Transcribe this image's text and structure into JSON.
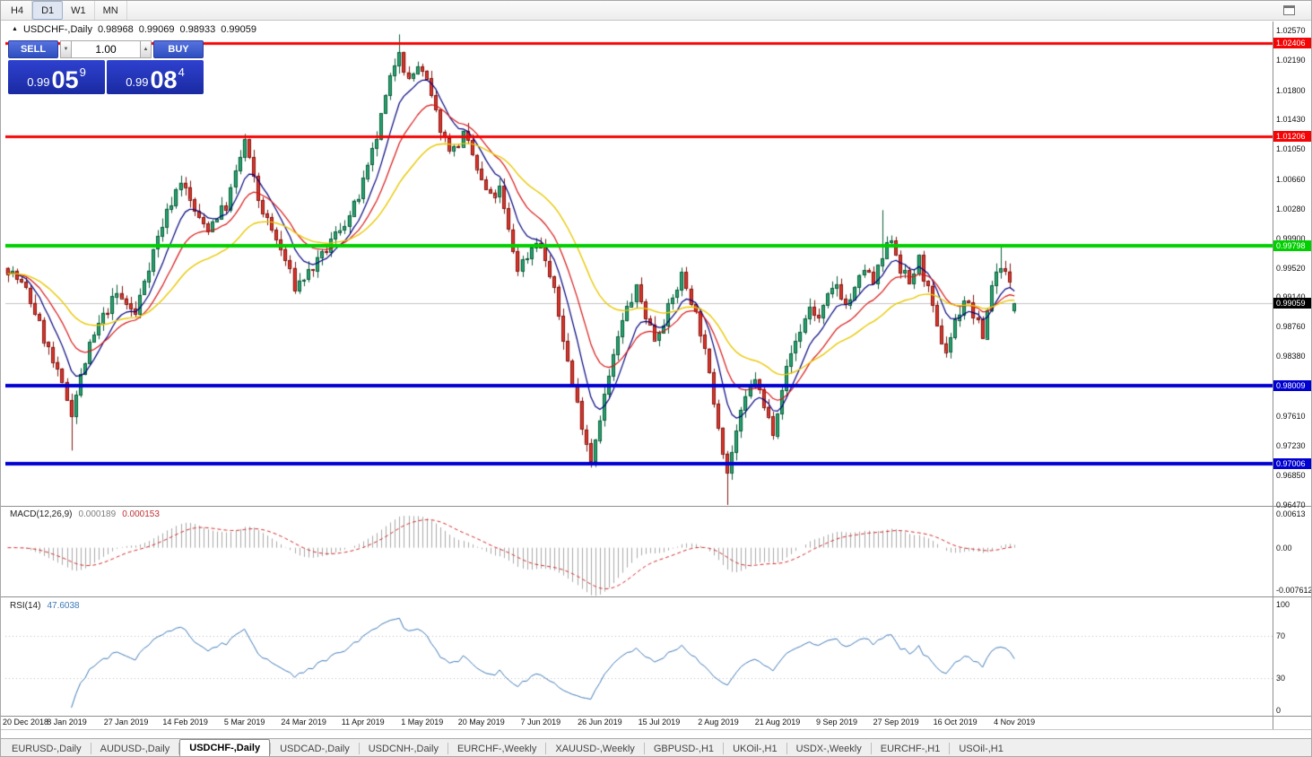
{
  "toolbar": {
    "timeframes": [
      "H4",
      "D1",
      "W1",
      "MN"
    ],
    "active_timeframe": "D1"
  },
  "icons": {
    "spin_up": "▲",
    "spin_down": "▼",
    "symbol_arrow": "▲"
  },
  "chart": {
    "ohlc_line": {
      "symbol": "USDCHF-,Daily",
      "open": "0.98968",
      "high": "0.99069",
      "low": "0.98933",
      "close": "0.99059"
    },
    "trade_panel": {
      "sell_label": "SELL",
      "buy_label": "BUY",
      "volume": "1.00",
      "sell_price": {
        "prefix": "0.99",
        "big": "05",
        "sup": "9"
      },
      "buy_price": {
        "prefix": "0.99",
        "big": "08",
        "sup": "4"
      }
    },
    "price_range": {
      "top": 1.0257,
      "bottom": 0.9647
    },
    "y_axis": [
      "1.02570",
      "1.02190",
      "1.01800",
      "1.01430",
      "1.01050",
      "1.00660",
      "1.00280",
      "0.99900",
      "0.99520",
      "0.99140",
      "0.98760",
      "0.98380",
      "0.97990",
      "0.97610",
      "0.97230",
      "0.96850",
      "0.96470"
    ],
    "x_axis": [
      "20 Dec 2018",
      "8 Jan 2019",
      "27 Jan 2019",
      "14 Feb 2019",
      "5 Mar 2019",
      "24 Mar 2019",
      "11 Apr 2019",
      "1 May 2019",
      "20 May 2019",
      "7 Jun 2019",
      "26 Jun 2019",
      "15 Jul 2019",
      "2 Aug 2019",
      "21 Aug 2019",
      "9 Sep 2019",
      "27 Sep 2019",
      "16 Oct 2019",
      "4 Nov 2019"
    ],
    "levels": [
      {
        "price": 1.02406,
        "label": "1.02406",
        "color": "#f40404",
        "width": 3
      },
      {
        "price": 1.01206,
        "label": "1.01206",
        "color": "#f40404",
        "width": 3
      },
      {
        "price": 0.99798,
        "label": "0.99798",
        "color": "#00d000",
        "width": 4
      },
      {
        "price": 0.98009,
        "label": "0.98009",
        "color": "#0000d0",
        "width": 4
      },
      {
        "price": 0.97006,
        "label": "0.97006",
        "color": "#0000d0",
        "width": 4
      }
    ],
    "current_price": {
      "value": 0.99059,
      "label": "0.99059",
      "tag_color": "#000000"
    }
  },
  "chart_data": {
    "type": "candlestick",
    "symbol": "USDCHF",
    "timeframe": "Daily",
    "bars": 222,
    "label_every_bars": 13,
    "anchors": [
      [
        0,
        0.9952
      ],
      [
        2,
        0.9938
      ],
      [
        4,
        0.9922
      ],
      [
        6,
        0.9896
      ],
      [
        8,
        0.9862
      ],
      [
        10,
        0.983
      ],
      [
        12,
        0.98
      ],
      [
        14,
        0.9768
      ],
      [
        16,
        0.9812
      ],
      [
        18,
        0.985
      ],
      [
        20,
        0.9878
      ],
      [
        22,
        0.99
      ],
      [
        24,
        0.9918
      ],
      [
        26,
        0.9906
      ],
      [
        28,
        0.9892
      ],
      [
        30,
        0.9938
      ],
      [
        32,
        0.9974
      ],
      [
        34,
        1.0008
      ],
      [
        36,
        1.0038
      ],
      [
        38,
        1.0066
      ],
      [
        40,
        1.0038
      ],
      [
        42,
        1.0012
      ],
      [
        44,
        1.0004
      ],
      [
        46,
        1.002
      ],
      [
        48,
        1.0032
      ],
      [
        50,
        1.0072
      ],
      [
        52,
        1.0116
      ],
      [
        53,
        1.009
      ],
      [
        55,
        1.004
      ],
      [
        57,
        1.0012
      ],
      [
        59,
        0.9988
      ],
      [
        61,
        0.9962
      ],
      [
        63,
        0.9928
      ],
      [
        65,
        0.994
      ],
      [
        67,
        0.9952
      ],
      [
        69,
        0.9966
      ],
      [
        71,
        0.9986
      ],
      [
        73,
        1.0004
      ],
      [
        75,
        1.0018
      ],
      [
        77,
        1.0044
      ],
      [
        79,
        1.0078
      ],
      [
        81,
        1.012
      ],
      [
        83,
        1.017
      ],
      [
        85,
        1.0216
      ],
      [
        86,
        1.0236
      ],
      [
        87,
        1.021
      ],
      [
        88,
        1.0192
      ],
      [
        90,
        1.0212
      ],
      [
        92,
        1.019
      ],
      [
        94,
        1.015
      ],
      [
        96,
        1.0116
      ],
      [
        98,
        1.0104
      ],
      [
        100,
        1.0122
      ],
      [
        102,
        1.0096
      ],
      [
        104,
        1.0062
      ],
      [
        106,
        1.0042
      ],
      [
        108,
        1.0052
      ],
      [
        110,
        0.9998
      ],
      [
        112,
        0.9952
      ],
      [
        114,
        0.9968
      ],
      [
        116,
        0.999
      ],
      [
        118,
        0.9962
      ],
      [
        120,
        0.992
      ],
      [
        122,
        0.9862
      ],
      [
        124,
        0.9802
      ],
      [
        126,
        0.9752
      ],
      [
        128,
        0.9706
      ],
      [
        130,
        0.9762
      ],
      [
        132,
        0.9812
      ],
      [
        134,
        0.9862
      ],
      [
        136,
        0.99
      ],
      [
        138,
        0.9924
      ],
      [
        140,
        0.9892
      ],
      [
        142,
        0.9862
      ],
      [
        144,
        0.9886
      ],
      [
        146,
        0.9912
      ],
      [
        148,
        0.9942
      ],
      [
        150,
        0.9912
      ],
      [
        152,
        0.9872
      ],
      [
        154,
        0.9812
      ],
      [
        156,
        0.9752
      ],
      [
        158,
        0.969
      ],
      [
        160,
        0.9742
      ],
      [
        162,
        0.9782
      ],
      [
        164,
        0.9812
      ],
      [
        166,
        0.9772
      ],
      [
        168,
        0.9744
      ],
      [
        170,
        0.98
      ],
      [
        172,
        0.9842
      ],
      [
        174,
        0.9872
      ],
      [
        176,
        0.9902
      ],
      [
        178,
        0.9886
      ],
      [
        180,
        0.9912
      ],
      [
        182,
        0.9932
      ],
      [
        184,
        0.9904
      ],
      [
        186,
        0.9922
      ],
      [
        188,
        0.9952
      ],
      [
        190,
        0.9932
      ],
      [
        192,
        0.9964
      ],
      [
        194,
        0.9992
      ],
      [
        196,
        0.9952
      ],
      [
        198,
        0.9932
      ],
      [
        200,
        0.9962
      ],
      [
        202,
        0.9922
      ],
      [
        204,
        0.9872
      ],
      [
        206,
        0.9846
      ],
      [
        208,
        0.9882
      ],
      [
        210,
        0.9912
      ],
      [
        212,
        0.9892
      ],
      [
        214,
        0.9864
      ],
      [
        216,
        0.9932
      ],
      [
        218,
        0.9958
      ],
      [
        220,
        0.993
      ],
      [
        221,
        0.9906
      ]
    ],
    "wick_overrides": [
      {
        "bar": 14,
        "low": 0.9717
      },
      {
        "bar": 52,
        "high": 1.0124
      },
      {
        "bar": 86,
        "high": 1.0252
      },
      {
        "bar": 158,
        "low": 0.9647
      },
      {
        "bar": 192,
        "high": 1.0026
      },
      {
        "bar": 218,
        "high": 0.9978
      }
    ],
    "last_ohlc": [
      0.98968,
      0.99069,
      0.98933,
      0.99059
    ],
    "colors": {
      "up": "#26a570",
      "up_border": "#0d5c3b",
      "down": "#e0352b",
      "down_border": "#7e1710"
    },
    "ma": [
      {
        "period": 8,
        "color": "#00007f",
        "width": 1.2
      },
      {
        "period": 16,
        "color": "#d81616",
        "width": 1.2
      },
      {
        "period": 34,
        "color": "#e8c800",
        "width": 1.4
      }
    ]
  },
  "macd": {
    "title": "MACD(12,26,9)",
    "value_main": "0.000189",
    "value_signal": "0.000153",
    "axis": [
      "0.00613",
      "0.00",
      "-0.007612"
    ],
    "range": {
      "max": 0.0064,
      "min": -0.0078
    },
    "fast": 12,
    "slow": 26,
    "signal": 9,
    "histogram_color": "#a9a9a9",
    "signal_color": "#d22a2a"
  },
  "rsi": {
    "title": "RSI(14)",
    "value": "47.6038",
    "axis": [
      "100",
      "70",
      "30",
      "0"
    ],
    "period": 14,
    "levels": [
      70,
      30
    ],
    "line_color": "#3f79b7"
  },
  "tabs": {
    "active": "USDCHF-,Daily",
    "items": [
      "EURUSD-,Daily",
      "AUDUSD-,Daily",
      "USDCHF-,Daily",
      "USDCAD-,Daily",
      "USDCNH-,Daily",
      "EURCHF-,Weekly",
      "XAUUSD-,Weekly",
      "GBPUSD-,H1",
      "UKOil-,H1",
      "USDX-,Weekly",
      "EURCHF-,H1",
      "USOil-,H1"
    ]
  }
}
